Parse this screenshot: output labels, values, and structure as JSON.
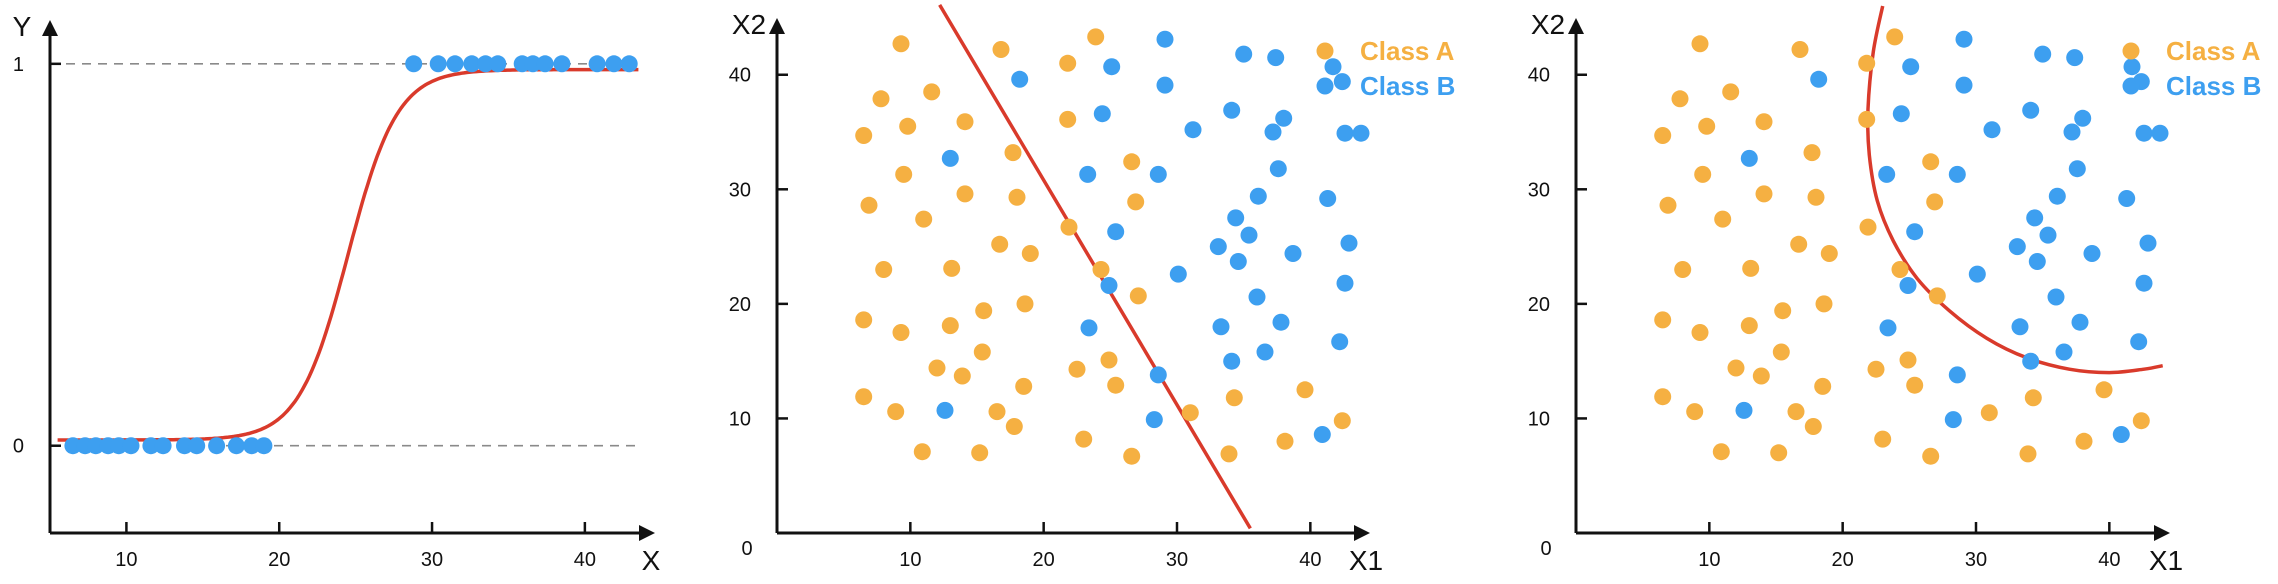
{
  "colors": {
    "class_a": "#f5b042",
    "class_b": "#3d9ff0",
    "curve": "#d93a2b",
    "axis": "#111111",
    "guide": "#8a8a8a"
  },
  "chart_data": [
    {
      "type": "scatter",
      "subtype": "logistic-fit",
      "xlabel": "X",
      "ylabel": "Y",
      "xlim": [
        5,
        44
      ],
      "ylim": [
        -0.15,
        1.12
      ],
      "xticks": [
        10,
        20,
        30,
        40
      ],
      "yticks": [
        0,
        1
      ],
      "guide_lines_y": [
        0,
        1
      ],
      "grid": false,
      "series": [
        {
          "points": [
            [
              6.5,
              0
            ],
            [
              7.3,
              0
            ],
            [
              8.0,
              0
            ],
            [
              8.8,
              0
            ],
            [
              9.5,
              0
            ],
            [
              10.3,
              0
            ],
            [
              11.6,
              0
            ],
            [
              12.4,
              0
            ],
            [
              13.8,
              0
            ],
            [
              14.6,
              0
            ],
            [
              15.9,
              0
            ],
            [
              17.2,
              0
            ],
            [
              18.2,
              0
            ],
            [
              19.0,
              0
            ],
            [
              28.8,
              1
            ],
            [
              30.4,
              1
            ],
            [
              31.5,
              1
            ],
            [
              32.6,
              1
            ],
            [
              33.5,
              1
            ],
            [
              34.3,
              1
            ],
            [
              35.9,
              1
            ],
            [
              36.6,
              1
            ],
            [
              37.4,
              1
            ],
            [
              38.5,
              1
            ],
            [
              40.8,
              1
            ],
            [
              41.9,
              1
            ],
            [
              42.9,
              1
            ]
          ]
        }
      ],
      "fit_curve": {
        "model": "logistic",
        "x0": 24.5,
        "k": 0.62,
        "x_range": [
          5.5,
          43.5
        ],
        "y_low": 0.015,
        "y_high": 0.985
      }
    },
    {
      "type": "scatter",
      "subtype": "linear-decision-boundary",
      "xlabel": "X1",
      "ylabel": "X2",
      "origin_label": "0",
      "xlim": [
        0,
        45
      ],
      "ylim": [
        0,
        46
      ],
      "xticks": [
        10,
        20,
        30,
        40
      ],
      "yticks": [
        10,
        20,
        30,
        40
      ],
      "grid": false,
      "legend": [
        "Class A",
        "Class B"
      ],
      "legend_position": "top-right",
      "series": [
        {
          "name": "Class A",
          "points": [
            [
              9.3,
              42.7
            ],
            [
              16.8,
              42.2
            ],
            [
              23.9,
              43.3
            ],
            [
              21.8,
              41.0
            ],
            [
              7.8,
              37.9
            ],
            [
              11.6,
              38.5
            ],
            [
              9.8,
              35.5
            ],
            [
              14.1,
              35.9
            ],
            [
              6.5,
              34.7
            ],
            [
              21.8,
              36.1
            ],
            [
              17.7,
              33.2
            ],
            [
              9.5,
              31.3
            ],
            [
              14.1,
              29.6
            ],
            [
              18.0,
              29.3
            ],
            [
              26.6,
              32.4
            ],
            [
              6.9,
              28.6
            ],
            [
              11.0,
              27.4
            ],
            [
              26.9,
              28.9
            ],
            [
              21.9,
              26.7
            ],
            [
              16.7,
              25.2
            ],
            [
              13.1,
              23.1
            ],
            [
              8.0,
              23.0
            ],
            [
              19.0,
              24.4
            ],
            [
              24.3,
              23.0
            ],
            [
              6.5,
              18.6
            ],
            [
              9.3,
              17.5
            ],
            [
              13.0,
              18.1
            ],
            [
              15.5,
              19.4
            ],
            [
              18.6,
              20.0
            ],
            [
              27.1,
              20.7
            ],
            [
              12.0,
              14.4
            ],
            [
              15.4,
              15.8
            ],
            [
              13.9,
              13.7
            ],
            [
              18.5,
              12.8
            ],
            [
              24.9,
              15.1
            ],
            [
              22.5,
              14.3
            ],
            [
              25.4,
              12.9
            ],
            [
              34.3,
              11.8
            ],
            [
              39.6,
              12.5
            ],
            [
              6.5,
              11.9
            ],
            [
              8.9,
              10.6
            ],
            [
              16.5,
              10.6
            ],
            [
              17.8,
              9.3
            ],
            [
              31.0,
              10.5
            ],
            [
              42.4,
              9.8
            ],
            [
              10.9,
              7.1
            ],
            [
              15.2,
              7.0
            ],
            [
              23.0,
              8.2
            ],
            [
              26.6,
              6.7
            ],
            [
              33.9,
              6.9
            ],
            [
              38.1,
              8.0
            ]
          ]
        },
        {
          "name": "Class B",
          "points": [
            [
              29.1,
              43.1
            ],
            [
              18.2,
              39.6
            ],
            [
              25.1,
              40.7
            ],
            [
              35.0,
              41.8
            ],
            [
              37.4,
              41.5
            ],
            [
              41.7,
              40.7
            ],
            [
              42.4,
              39.4
            ],
            [
              29.1,
              39.1
            ],
            [
              24.4,
              36.6
            ],
            [
              31.2,
              35.2
            ],
            [
              34.1,
              36.9
            ],
            [
              37.2,
              35.0
            ],
            [
              38.0,
              36.2
            ],
            [
              42.6,
              34.9
            ],
            [
              43.8,
              34.9
            ],
            [
              13.0,
              32.7
            ],
            [
              23.3,
              31.3
            ],
            [
              28.6,
              31.3
            ],
            [
              37.6,
              31.8
            ],
            [
              36.1,
              29.4
            ],
            [
              41.3,
              29.2
            ],
            [
              34.4,
              27.5
            ],
            [
              35.4,
              26.0
            ],
            [
              25.4,
              26.3
            ],
            [
              33.1,
              25.0
            ],
            [
              34.6,
              23.7
            ],
            [
              42.9,
              25.3
            ],
            [
              30.1,
              22.6
            ],
            [
              24.9,
              21.6
            ],
            [
              38.7,
              24.4
            ],
            [
              42.6,
              21.8
            ],
            [
              36.0,
              20.6
            ],
            [
              23.4,
              17.9
            ],
            [
              33.3,
              18.0
            ],
            [
              37.8,
              18.4
            ],
            [
              42.2,
              16.7
            ],
            [
              34.1,
              15.0
            ],
            [
              36.6,
              15.8
            ],
            [
              28.6,
              13.8
            ],
            [
              12.6,
              10.7
            ],
            [
              28.3,
              9.9
            ],
            [
              40.9,
              8.6
            ]
          ]
        }
      ],
      "decision_boundary": {
        "kind": "line",
        "points": [
          [
            12.2,
            46.1
          ],
          [
            35.5,
            0.4
          ]
        ]
      }
    },
    {
      "type": "scatter",
      "subtype": "nonlinear-decision-boundary",
      "xlabel": "X1",
      "ylabel": "X2",
      "origin_label": "0",
      "xlim": [
        0,
        45
      ],
      "ylim": [
        0,
        46
      ],
      "xticks": [
        10,
        20,
        30,
        40
      ],
      "yticks": [
        10,
        20,
        30,
        40
      ],
      "grid": false,
      "legend": [
        "Class A",
        "Class B"
      ],
      "legend_position": "top-right",
      "series": [
        {
          "name": "Class A",
          "points": [
            [
              9.3,
              42.7
            ],
            [
              16.8,
              42.2
            ],
            [
              23.9,
              43.3
            ],
            [
              21.8,
              41.0
            ],
            [
              7.8,
              37.9
            ],
            [
              11.6,
              38.5
            ],
            [
              9.8,
              35.5
            ],
            [
              14.1,
              35.9
            ],
            [
              6.5,
              34.7
            ],
            [
              21.8,
              36.1
            ],
            [
              17.7,
              33.2
            ],
            [
              9.5,
              31.3
            ],
            [
              14.1,
              29.6
            ],
            [
              18.0,
              29.3
            ],
            [
              26.6,
              32.4
            ],
            [
              6.9,
              28.6
            ],
            [
              11.0,
              27.4
            ],
            [
              26.9,
              28.9
            ],
            [
              21.9,
              26.7
            ],
            [
              16.7,
              25.2
            ],
            [
              13.1,
              23.1
            ],
            [
              8.0,
              23.0
            ],
            [
              19.0,
              24.4
            ],
            [
              24.3,
              23.0
            ],
            [
              6.5,
              18.6
            ],
            [
              9.3,
              17.5
            ],
            [
              13.0,
              18.1
            ],
            [
              15.5,
              19.4
            ],
            [
              18.6,
              20.0
            ],
            [
              27.1,
              20.7
            ],
            [
              12.0,
              14.4
            ],
            [
              15.4,
              15.8
            ],
            [
              13.9,
              13.7
            ],
            [
              18.5,
              12.8
            ],
            [
              24.9,
              15.1
            ],
            [
              22.5,
              14.3
            ],
            [
              25.4,
              12.9
            ],
            [
              34.3,
              11.8
            ],
            [
              39.6,
              12.5
            ],
            [
              6.5,
              11.9
            ],
            [
              8.9,
              10.6
            ],
            [
              16.5,
              10.6
            ],
            [
              17.8,
              9.3
            ],
            [
              31.0,
              10.5
            ],
            [
              42.4,
              9.8
            ],
            [
              10.9,
              7.1
            ],
            [
              15.2,
              7.0
            ],
            [
              23.0,
              8.2
            ],
            [
              26.6,
              6.7
            ],
            [
              33.9,
              6.9
            ],
            [
              38.1,
              8.0
            ]
          ]
        },
        {
          "name": "Class B",
          "points": [
            [
              29.1,
              43.1
            ],
            [
              18.2,
              39.6
            ],
            [
              25.1,
              40.7
            ],
            [
              35.0,
              41.8
            ],
            [
              37.4,
              41.5
            ],
            [
              41.7,
              40.7
            ],
            [
              42.4,
              39.4
            ],
            [
              29.1,
              39.1
            ],
            [
              24.4,
              36.6
            ],
            [
              31.2,
              35.2
            ],
            [
              34.1,
              36.9
            ],
            [
              37.2,
              35.0
            ],
            [
              38.0,
              36.2
            ],
            [
              42.6,
              34.9
            ],
            [
              43.8,
              34.9
            ],
            [
              13.0,
              32.7
            ],
            [
              23.3,
              31.3
            ],
            [
              28.6,
              31.3
            ],
            [
              37.6,
              31.8
            ],
            [
              36.1,
              29.4
            ],
            [
              41.3,
              29.2
            ],
            [
              34.4,
              27.5
            ],
            [
              35.4,
              26.0
            ],
            [
              25.4,
              26.3
            ],
            [
              33.1,
              25.0
            ],
            [
              34.6,
              23.7
            ],
            [
              42.9,
              25.3
            ],
            [
              30.1,
              22.6
            ],
            [
              24.9,
              21.6
            ],
            [
              38.7,
              24.4
            ],
            [
              42.6,
              21.8
            ],
            [
              36.0,
              20.6
            ],
            [
              23.4,
              17.9
            ],
            [
              33.3,
              18.0
            ],
            [
              37.8,
              18.4
            ],
            [
              42.2,
              16.7
            ],
            [
              34.1,
              15.0
            ],
            [
              36.6,
              15.8
            ],
            [
              28.6,
              13.8
            ],
            [
              12.6,
              10.7
            ],
            [
              28.3,
              9.9
            ],
            [
              40.9,
              8.6
            ]
          ]
        }
      ],
      "decision_boundary": {
        "kind": "curve",
        "points": [
          [
            23.0,
            46.0
          ],
          [
            22.3,
            42.0
          ],
          [
            21.9,
            37.0
          ],
          [
            22.0,
            33.0
          ],
          [
            22.6,
            29.0
          ],
          [
            23.8,
            25.5
          ],
          [
            25.6,
            22.2
          ],
          [
            28.0,
            19.4
          ],
          [
            30.8,
            17.0
          ],
          [
            33.8,
            15.3
          ],
          [
            37.0,
            14.3
          ],
          [
            40.0,
            14.0
          ],
          [
            42.6,
            14.3
          ],
          [
            44.0,
            14.6
          ]
        ]
      }
    }
  ]
}
